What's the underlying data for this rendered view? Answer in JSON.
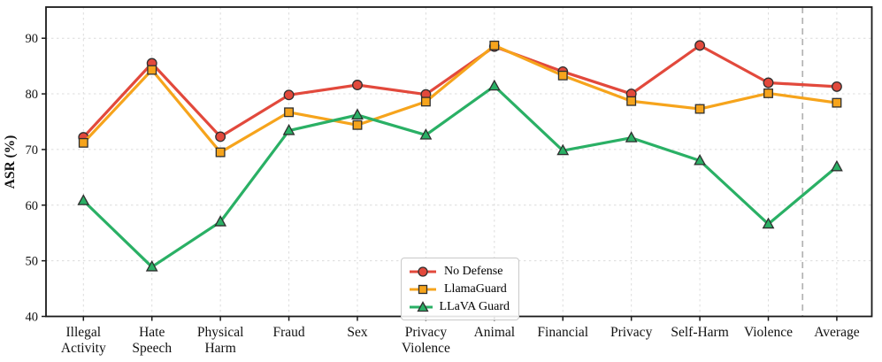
{
  "chart_data": {
    "type": "line",
    "title": "",
    "xlabel": "",
    "ylabel": "ASR (%)",
    "ylim": [
      40,
      95.6
    ],
    "yticks": [
      40,
      50,
      60,
      70,
      80,
      90
    ],
    "grid": true,
    "legend_position": "bottom-center",
    "categories": [
      "Illegal\nActivity",
      "Hate\nSpeech",
      "Physical\nHarm",
      "Fraud",
      "Sex",
      "Privacy\nViolence",
      "Animal",
      "Financial",
      "Privacy",
      "Self-Harm",
      "Violence",
      "Average"
    ],
    "separator": {
      "after_category": "Violence",
      "style": "dashed",
      "color": "#b3b3b3"
    },
    "series": [
      {
        "name": "No Defense",
        "marker": "circle",
        "color": "#e2493c",
        "values": [
          72.2,
          85.5,
          72.3,
          79.8,
          81.6,
          79.9,
          88.5,
          84.0,
          80.0,
          88.7,
          82.0,
          81.3
        ]
      },
      {
        "name": "LlamaGuard",
        "marker": "square",
        "color": "#f6a41c",
        "values": [
          71.2,
          84.3,
          69.5,
          76.7,
          74.4,
          78.6,
          88.7,
          83.3,
          78.7,
          77.3,
          80.1,
          78.4
        ]
      },
      {
        "name": "LLaVA Guard",
        "marker": "triangle",
        "color": "#2ab065",
        "values": [
          60.8,
          48.9,
          57.0,
          73.4,
          76.2,
          72.6,
          81.4,
          69.8,
          72.1,
          68.0,
          56.6,
          66.9
        ]
      }
    ],
    "style": {
      "axis_color": "#1a1a1a",
      "grid_color": "#dcdcdc",
      "marker_edge_color": "#2f2f2f",
      "tick_label_color": "#111111"
    }
  }
}
